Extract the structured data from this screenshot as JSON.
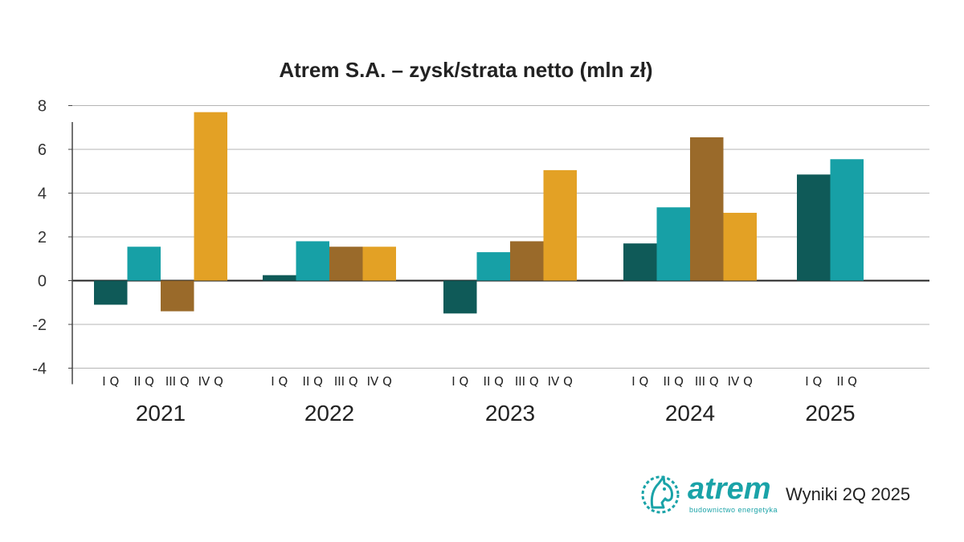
{
  "chart_data": {
    "type": "bar",
    "title": "Atrem S.A. – zysk/strata netto (mln zł)",
    "ylim": [
      -4,
      8
    ],
    "yticks": [
      "8",
      "6",
      "4",
      "2",
      "0",
      "-2",
      "-4"
    ],
    "grid": true,
    "groups": [
      {
        "year": "2021",
        "quarters": [
          {
            "label": "I Q",
            "value": -1.1
          },
          {
            "label": "II Q",
            "value": 1.55
          },
          {
            "label": "III Q",
            "value": -1.4
          },
          {
            "label": "IV Q",
            "value": 7.7
          }
        ]
      },
      {
        "year": "2022",
        "quarters": [
          {
            "label": "I Q",
            "value": 0.25
          },
          {
            "label": "II Q",
            "value": 1.8
          },
          {
            "label": "III Q",
            "value": 1.55
          },
          {
            "label": "IV Q",
            "value": 1.55
          }
        ]
      },
      {
        "year": "2023",
        "quarters": [
          {
            "label": "I Q",
            "value": -1.5
          },
          {
            "label": "II Q",
            "value": 1.3
          },
          {
            "label": "III Q",
            "value": 1.8
          },
          {
            "label": "IV Q",
            "value": 5.05
          }
        ]
      },
      {
        "year": "2024",
        "quarters": [
          {
            "label": "I Q",
            "value": 1.7
          },
          {
            "label": "II Q",
            "value": 3.35
          },
          {
            "label": "III Q",
            "value": 6.55
          },
          {
            "label": "IV Q",
            "value": 3.1
          }
        ]
      },
      {
        "year": "2025",
        "quarters": [
          {
            "label": "I Q",
            "value": 4.85
          },
          {
            "label": "II Q",
            "value": 5.55
          }
        ]
      }
    ],
    "colors": [
      "#0f5a58",
      "#17a0a6",
      "#9a6a2a",
      "#e3a125"
    ]
  },
  "logo": {
    "name": "atrem",
    "tagline": "budownictwo energetyka",
    "icon": "horse-head-icon"
  },
  "footer": {
    "text": "Wyniki 2Q 2025"
  }
}
